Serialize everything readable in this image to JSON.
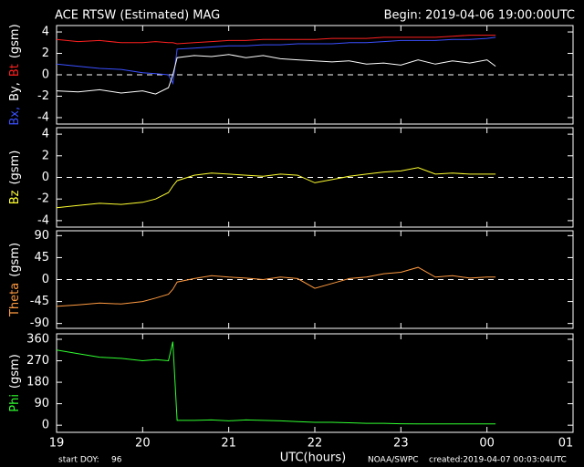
{
  "header": {
    "title": "ACE RTSW (Estimated) MAG",
    "begin": "Begin: 2019-04-06 19:00:00UTC"
  },
  "footer": {
    "start_label": "start DOY:",
    "start_doy": "96",
    "xlabel": "UTC(hours)",
    "source": "NOAA/SWPC",
    "created": "created:2019-04-07 00:03:04UTC"
  },
  "chart_data": [
    {
      "type": "line",
      "zero_line": true,
      "ylabel": [
        {
          "text": "Bx,",
          "color": "#3a50ff"
        },
        {
          "text": "By,",
          "color": "#ffffff"
        },
        {
          "text": "Bt",
          "color": "#ff2020"
        },
        {
          "text": "(gsm)",
          "color": "#ffffff"
        }
      ],
      "x": [
        19,
        19.25,
        19.5,
        19.75,
        20,
        20.15,
        20.3,
        20.35,
        20.4,
        20.6,
        20.8,
        21,
        21.2,
        21.4,
        21.6,
        21.8,
        22,
        22.2,
        22.4,
        22.6,
        22.8,
        23,
        23.2,
        23.4,
        23.6,
        23.8,
        24,
        24.1
      ],
      "xlim": [
        19,
        25
      ],
      "ylim": [
        -4.6,
        4.6
      ],
      "yticks": [
        -4,
        -2,
        0,
        2,
        4
      ],
      "series": [
        {
          "color": "#ff2020",
          "values": [
            3.3,
            3.1,
            3.2,
            3.0,
            3.0,
            3.1,
            3.0,
            3.0,
            2.9,
            3.0,
            3.1,
            3.2,
            3.2,
            3.3,
            3.3,
            3.3,
            3.3,
            3.4,
            3.4,
            3.4,
            3.5,
            3.5,
            3.5,
            3.5,
            3.6,
            3.7,
            3.7,
            3.7
          ]
        },
        {
          "color": "#3a50ff",
          "values": [
            1.0,
            0.8,
            0.6,
            0.5,
            0.2,
            0.1,
            0.0,
            -0.8,
            2.4,
            2.5,
            2.6,
            2.7,
            2.7,
            2.8,
            2.8,
            2.9,
            2.9,
            2.9,
            3.0,
            3.0,
            3.1,
            3.2,
            3.2,
            3.2,
            3.3,
            3.3,
            3.4,
            3.5
          ]
        },
        {
          "color": "#ffffff",
          "values": [
            -1.5,
            -1.6,
            -1.4,
            -1.7,
            -1.5,
            -1.8,
            -1.2,
            0.0,
            1.6,
            1.8,
            1.7,
            1.9,
            1.6,
            1.8,
            1.5,
            1.4,
            1.3,
            1.2,
            1.3,
            1.0,
            1.1,
            0.9,
            1.4,
            1.0,
            1.3,
            1.1,
            1.4,
            0.8
          ]
        }
      ]
    },
    {
      "type": "line",
      "zero_line": true,
      "ylabel": [
        {
          "text": "Bz",
          "color": "#ffff30"
        },
        {
          "text": "(gsm)",
          "color": "#ffffff"
        }
      ],
      "x": [
        19,
        19.25,
        19.5,
        19.75,
        20,
        20.15,
        20.3,
        20.35,
        20.4,
        20.6,
        20.8,
        21,
        21.2,
        21.4,
        21.6,
        21.8,
        22,
        22.2,
        22.4,
        22.6,
        22.8,
        23,
        23.2,
        23.4,
        23.6,
        23.8,
        24,
        24.1
      ],
      "xlim": [
        19,
        25
      ],
      "ylim": [
        -4.6,
        4.6
      ],
      "yticks": [
        -4,
        -2,
        0,
        2,
        4
      ],
      "series": [
        {
          "color": "#ffff30",
          "values": [
            -2.8,
            -2.6,
            -2.4,
            -2.5,
            -2.3,
            -2.0,
            -1.4,
            -0.8,
            -0.3,
            0.2,
            0.4,
            0.3,
            0.2,
            0.1,
            0.3,
            0.2,
            -0.5,
            -0.2,
            0.1,
            0.3,
            0.5,
            0.6,
            0.9,
            0.3,
            0.4,
            0.3,
            0.3,
            0.3
          ]
        }
      ]
    },
    {
      "type": "line",
      "zero_line": true,
      "ylabel": [
        {
          "text": "Theta",
          "color": "#ff9a40"
        },
        {
          "text": "(gsm)",
          "color": "#ffffff"
        }
      ],
      "x": [
        19,
        19.25,
        19.5,
        19.75,
        20,
        20.15,
        20.3,
        20.35,
        20.4,
        20.6,
        20.8,
        21,
        21.2,
        21.4,
        21.6,
        21.8,
        22,
        22.2,
        22.4,
        22.6,
        22.8,
        23,
        23.2,
        23.4,
        23.6,
        23.8,
        24,
        24.1
      ],
      "xlim": [
        19,
        25
      ],
      "ylim": [
        -100,
        100
      ],
      "yticks": [
        -90,
        -45,
        0,
        45,
        90
      ],
      "series": [
        {
          "color": "#ff9a40",
          "values": [
            -55,
            -52,
            -48,
            -50,
            -45,
            -38,
            -30,
            -20,
            -5,
            2,
            8,
            5,
            3,
            0,
            5,
            2,
            -18,
            -8,
            2,
            5,
            12,
            15,
            25,
            5,
            8,
            3,
            5,
            5
          ]
        }
      ]
    },
    {
      "type": "line",
      "zero_line": false,
      "ylabel": [
        {
          "text": "Phi",
          "color": "#30ff30"
        },
        {
          "text": "(gsm)",
          "color": "#ffffff"
        }
      ],
      "x": [
        19,
        19.25,
        19.5,
        19.75,
        20,
        20.15,
        20.3,
        20.35,
        20.4,
        20.6,
        20.8,
        21,
        21.2,
        21.4,
        21.6,
        21.8,
        22,
        22.2,
        22.4,
        22.6,
        22.8,
        23,
        23.2,
        23.4,
        23.6,
        23.8,
        24,
        24.1
      ],
      "xlim": [
        19,
        25
      ],
      "ylim": [
        -30,
        383
      ],
      "yticks": [
        0,
        90,
        180,
        270,
        360
      ],
      "xticks": [
        19,
        20,
        21,
        22,
        23,
        {
          "value": 24,
          "label": "00"
        },
        {
          "value": 25,
          "label": "01"
        }
      ],
      "series": [
        {
          "color": "#30ff30",
          "values": [
            315,
            300,
            285,
            280,
            270,
            275,
            270,
            350,
            20,
            20,
            22,
            18,
            22,
            20,
            18,
            15,
            12,
            12,
            10,
            8,
            8,
            6,
            5,
            5,
            5,
            5,
            5,
            5
          ]
        }
      ]
    }
  ]
}
